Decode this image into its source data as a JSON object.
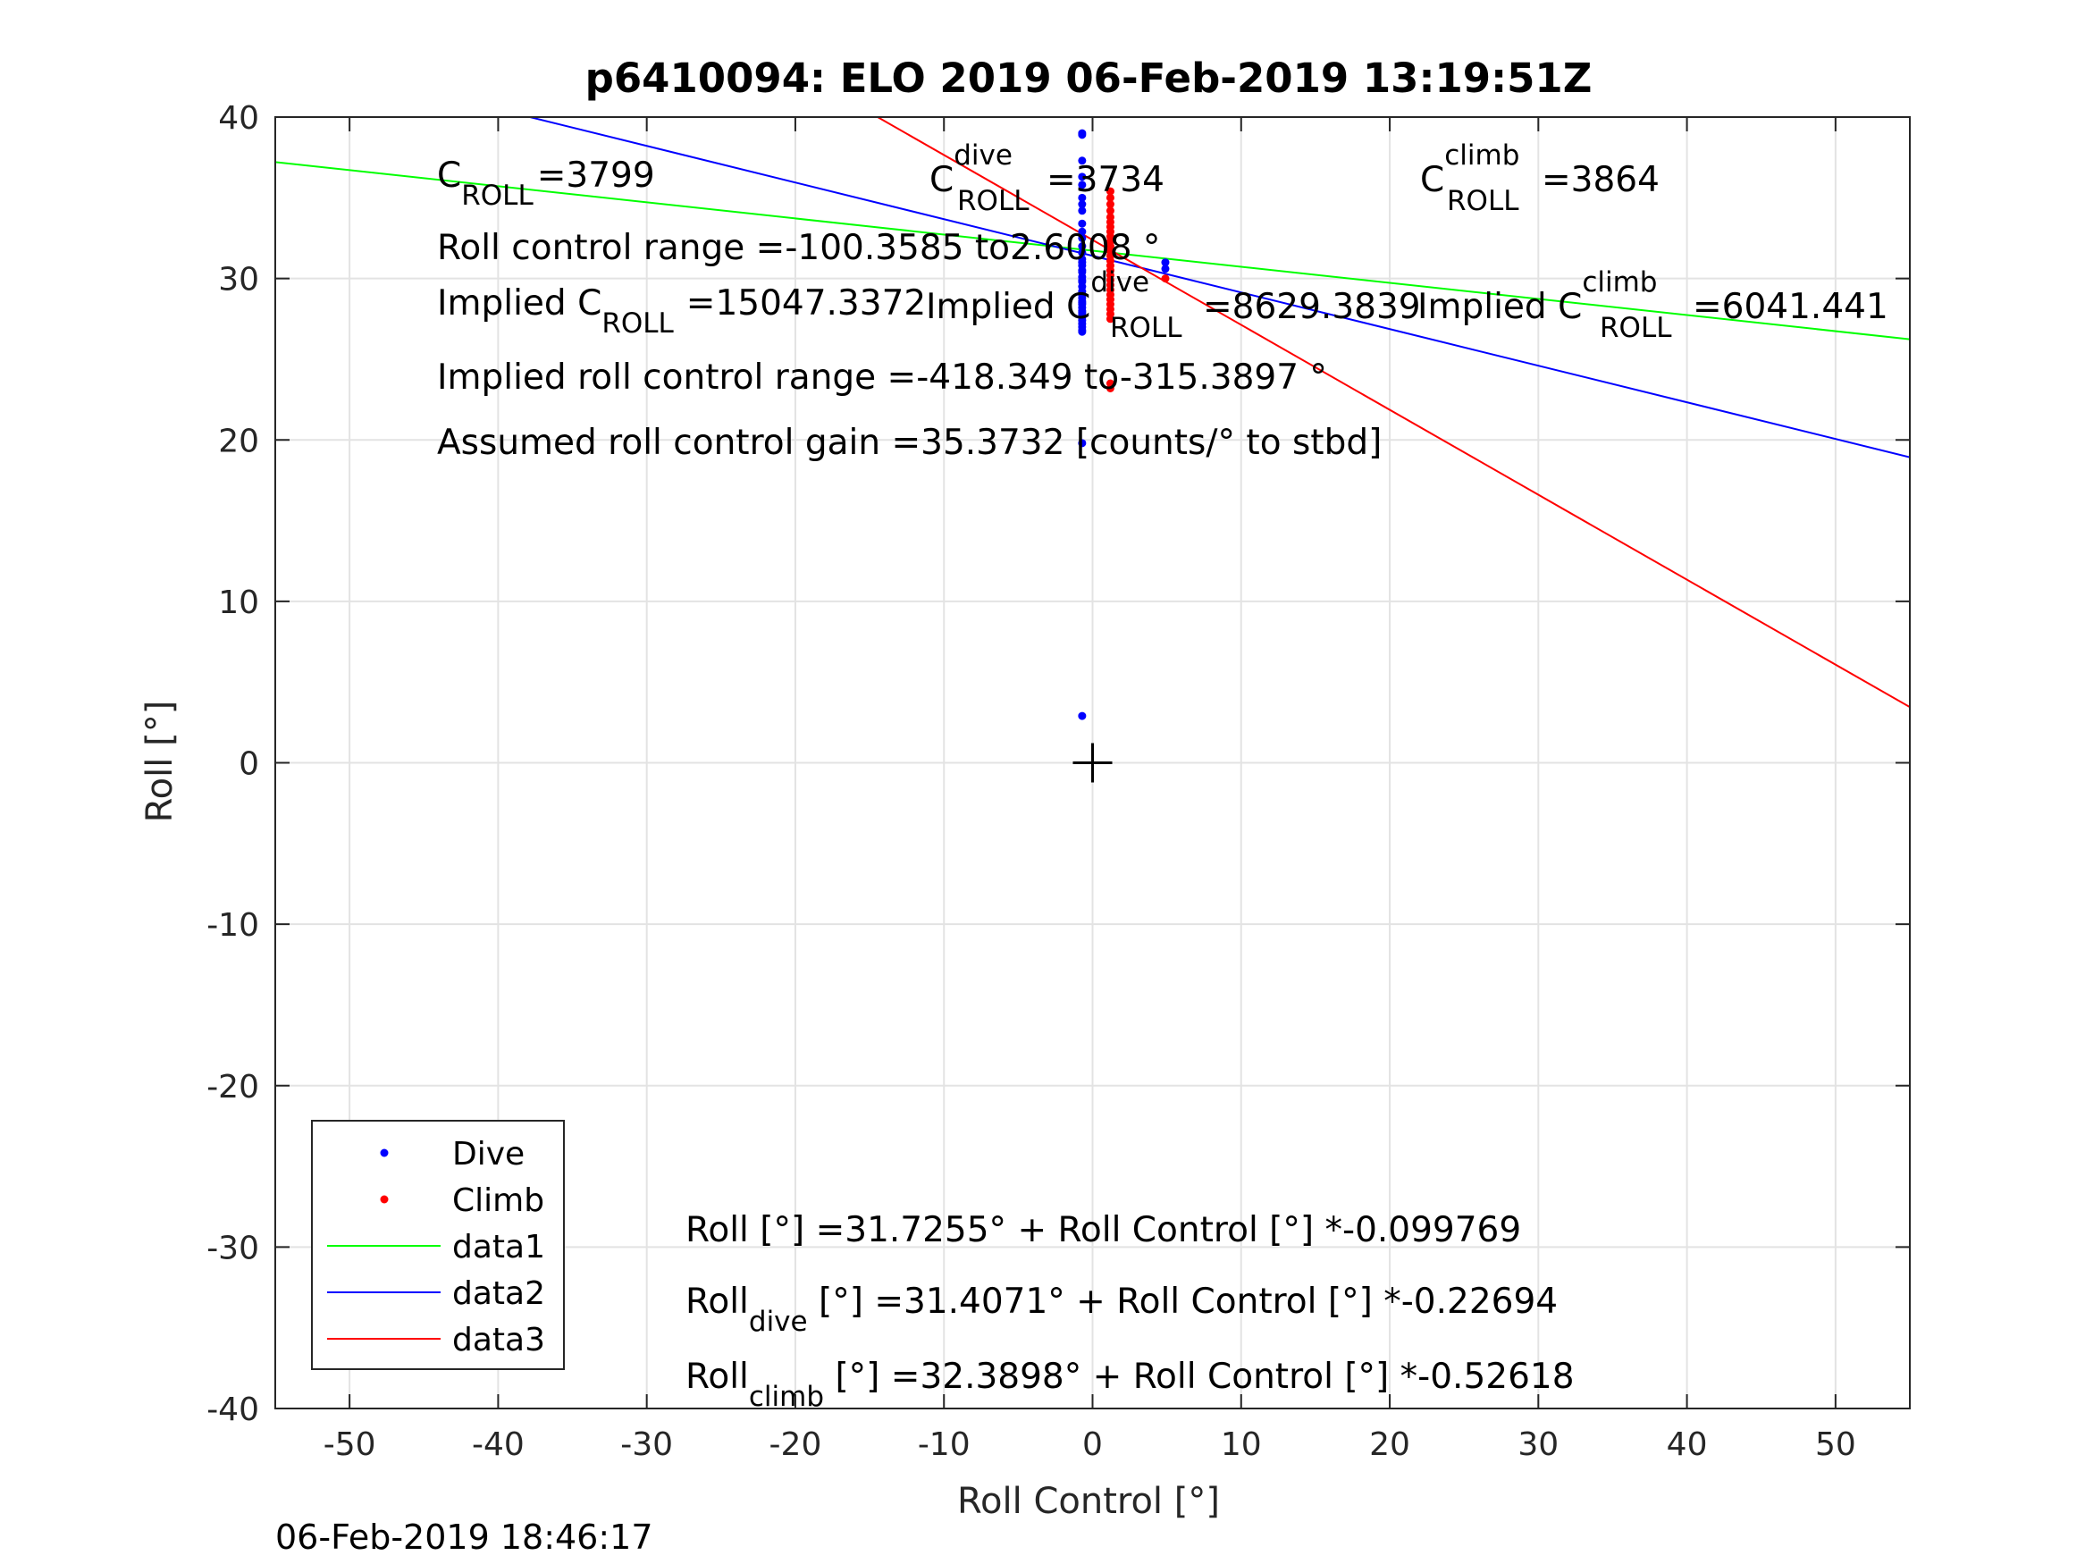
{
  "chart_data": {
    "type": "scatter",
    "title": "p6410094: ELO 2019 06-Feb-2019 13:19:51Z",
    "xlabel": "Roll Control [°]",
    "ylabel": "Roll [°]",
    "xlim": [
      -55,
      55
    ],
    "ylim": [
      -40,
      40
    ],
    "grid": true,
    "xticks": [
      -50,
      -40,
      -30,
      -20,
      -10,
      0,
      10,
      20,
      30,
      40,
      50
    ],
    "yticks": [
      -40,
      -30,
      -20,
      -10,
      0,
      10,
      20,
      30,
      40
    ],
    "xtick_labels": [
      "-50",
      "-40",
      "-30",
      "-20",
      "-10",
      "0",
      "10",
      "20",
      "30",
      "40",
      "50"
    ],
    "ytick_labels": [
      "-40",
      "-30",
      "-20",
      "-10",
      "0",
      "10",
      "20",
      "30",
      "40"
    ],
    "legend_position": "bottom-left",
    "series": [
      {
        "name": "Dive",
        "kind": "points",
        "color": "#0000ff",
        "x": [
          -0.7,
          -0.7,
          -0.7,
          -0.7,
          -0.7,
          -0.7,
          -0.7,
          -0.7,
          -0.7,
          -0.7,
          -0.7,
          -0.7,
          -0.7,
          -0.7,
          -0.7,
          -0.7,
          -0.7,
          -0.7,
          -0.7,
          -0.7,
          -0.7,
          -0.7,
          -0.7,
          -0.7,
          -0.7,
          -0.7,
          -0.7,
          -0.7,
          -0.7,
          -0.7,
          -0.7,
          -0.7,
          -0.7,
          -0.7,
          -0.7,
          -0.7,
          -0.7,
          -0.7,
          -0.7,
          -0.7,
          4.9,
          4.9
        ],
        "y": [
          39.0,
          38.9,
          37.3,
          36.3,
          35.8,
          35.0,
          34.6,
          34.2,
          33.4,
          32.9,
          32.5,
          32.0,
          31.6,
          31.2,
          30.8,
          30.4,
          30.1,
          29.8,
          29.5,
          29.2,
          29.0,
          28.8,
          28.6,
          28.4,
          28.2,
          28.0,
          27.8,
          27.6,
          27.4,
          27.2,
          27.0,
          26.8,
          26.7,
          31.0,
          29.9,
          28.5,
          27.9,
          19.8,
          2.9,
          30.5,
          31.0,
          30.6
        ]
      },
      {
        "name": "Climb",
        "kind": "points",
        "color": "#ff0000",
        "x": [
          1.2,
          1.2,
          1.2,
          1.2,
          1.2,
          1.2,
          1.2,
          1.2,
          1.2,
          1.2,
          1.2,
          1.2,
          1.2,
          1.2,
          1.2,
          1.2,
          1.2,
          1.2,
          1.2,
          1.2,
          1.2,
          1.2,
          1.2,
          1.2,
          1.2,
          1.2,
          1.2,
          1.2,
          4.9
        ],
        "y": [
          35.4,
          35.0,
          34.6,
          34.2,
          33.8,
          33.5,
          33.2,
          32.9,
          32.6,
          32.3,
          32.0,
          31.7,
          31.4,
          31.1,
          30.8,
          30.5,
          30.2,
          29.9,
          29.6,
          29.3,
          29.0,
          28.7,
          28.4,
          28.1,
          27.8,
          27.5,
          23.5,
          23.2,
          30.0
        ]
      },
      {
        "name": "data1",
        "kind": "line",
        "color": "#00ff00",
        "intercept": 31.7255,
        "slope": -0.099769
      },
      {
        "name": "data2",
        "kind": "line",
        "color": "#0000ff",
        "intercept": 31.4071,
        "slope": -0.22694
      },
      {
        "name": "data3",
        "kind": "line",
        "color": "#ff0000",
        "intercept": 32.3898,
        "slope": -0.52618
      }
    ],
    "annotations": {
      "c_roll": {
        "prefix": "C",
        "sub": "ROLL",
        "value": "=3799"
      },
      "c_roll_dive": {
        "prefix": "C",
        "sup": "dive",
        "sub": "ROLL",
        "value": "=3734"
      },
      "c_roll_climb": {
        "prefix": "C",
        "sup": "climb",
        "sub": "ROLL",
        "value": "=3864"
      },
      "roll_control_range": "Roll control range =-100.3585 to2.6008 °",
      "implied_c_roll": {
        "prefix": "Implied C",
        "sub": "ROLL",
        "value": "=15047.3372"
      },
      "implied_c_roll_dive": {
        "prefix": "Implied C",
        "sup": "dive",
        "sub": "ROLL",
        "value": "=8629.3839"
      },
      "implied_c_roll_climb": {
        "prefix": "Implied C",
        "sup": "climb",
        "sub": "ROLL",
        "value": "=6041.441"
      },
      "implied_range": "Implied roll control range =-418.349 to-315.3897 °",
      "assumed_gain": "Assumed roll control gain =35.3732 [counts/° to stbd]",
      "fit_all": "Roll [°] =31.7255° + Roll Control [°] *-0.099769",
      "fit_dive": {
        "prefix": "Roll",
        "sub": "dive",
        "rest": " [°] =31.4071° + Roll Control [°] *-0.22694"
      },
      "fit_climb": {
        "prefix": "Roll",
        "sub": "climb",
        "rest": " [°] =32.3898° + Roll Control [°] *-0.52618"
      }
    },
    "center_marker": {
      "x": 0,
      "y": 0,
      "symbol": "+"
    }
  },
  "footer": {
    "timestamp": "06-Feb-2019 18:46:17"
  }
}
